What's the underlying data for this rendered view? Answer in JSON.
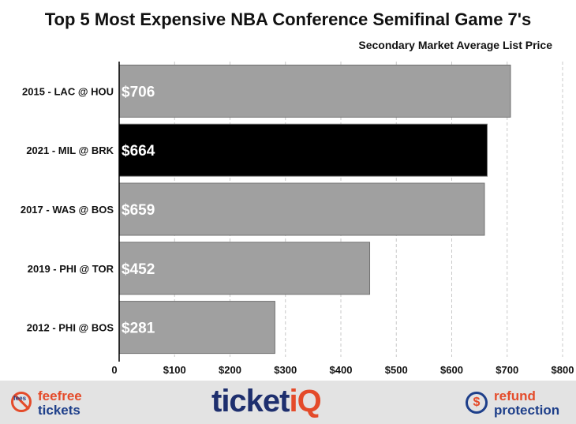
{
  "chart_data": {
    "type": "bar",
    "orientation": "horizontal",
    "title": "Top 5 Most Expensive NBA Conference Semifinal Game 7's",
    "subtitle": "Secondary Market Average List Price",
    "categories": [
      "2015 - LAC @ HOU",
      "2021 - MIL @ BRK",
      "2017 - WAS @ BOS",
      "2019 - PHI @ TOR",
      "2012 - PHI @ BOS"
    ],
    "values": [
      706,
      664,
      659,
      452,
      281
    ],
    "data_labels": [
      "$706",
      "$664",
      "$659",
      "$452",
      "$281"
    ],
    "highlight_index": 1,
    "bar_colors": [
      "#a0a0a0",
      "#000000",
      "#a0a0a0",
      "#a0a0a0",
      "#a0a0a0"
    ],
    "xlim": [
      0,
      800
    ],
    "xticks": [
      0,
      100,
      200,
      300,
      400,
      500,
      600,
      700,
      800
    ],
    "xtick_labels": [
      "0",
      "$100",
      "$200",
      "$300",
      "$400",
      "$500",
      "$600",
      "$700",
      "$800"
    ],
    "grid": "vertical-dashed",
    "xlabel": "",
    "ylabel": ""
  },
  "footer": {
    "left_line1": "feefree",
    "left_line2": "tickets",
    "left_icon_text": "fees",
    "logo_main": "ticket",
    "logo_accent": "iQ",
    "right_line1": "refund",
    "right_line2": "protection",
    "right_icon_text": "$"
  },
  "colors": {
    "brand_orange": "#e44b2a",
    "brand_navy": "#1e2f6e",
    "footer_bg": "#e3e3e3"
  }
}
